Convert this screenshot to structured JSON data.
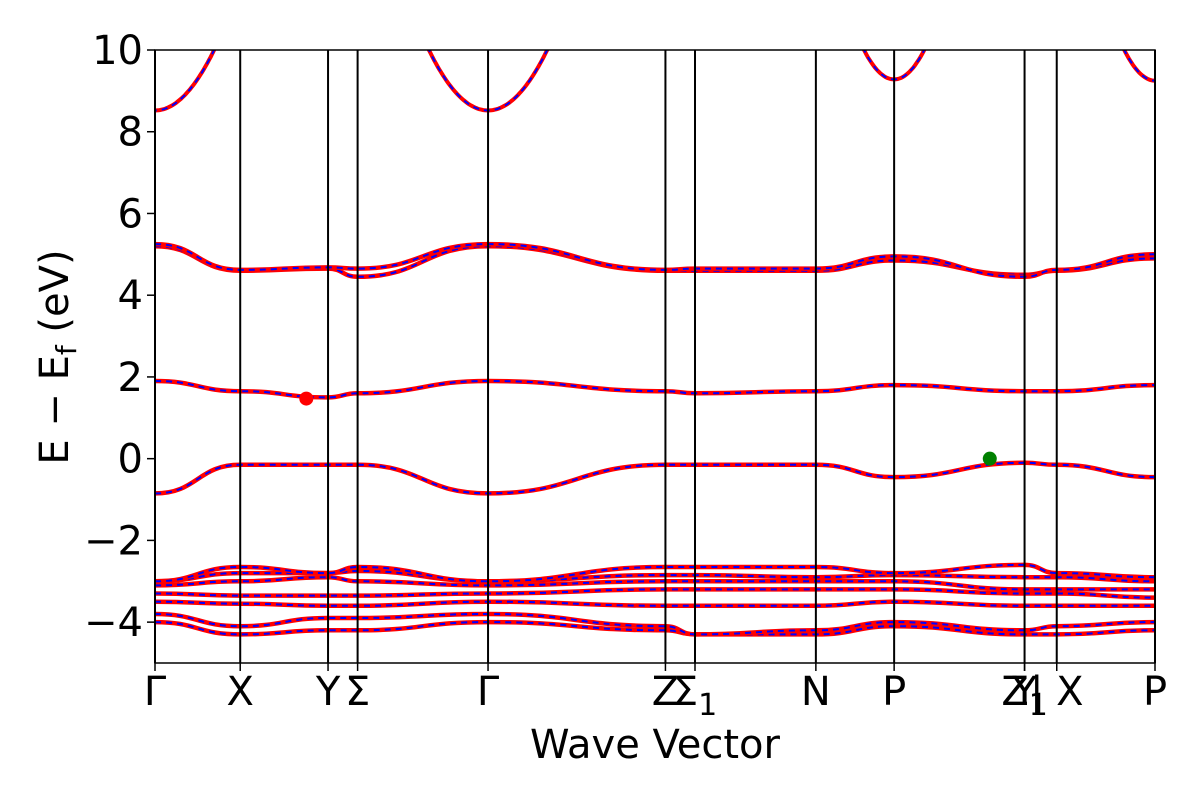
{
  "chart_data": {
    "type": "line",
    "title": "",
    "xlabel": "Wave Vector",
    "ylabel": "E − E_f (eV)",
    "ylabel_parts": {
      "main": "E − E",
      "sub": "f",
      "unit": " (eV)"
    },
    "ylim": [
      -5,
      10
    ],
    "xlim": [
      0,
      11.5
    ],
    "yticks": [
      -4,
      -2,
      0,
      2,
      4,
      6,
      8,
      10
    ],
    "ytick_labels": [
      "−4",
      "−2",
      "0",
      "2",
      "4",
      "6",
      "8",
      "10"
    ],
    "kpoint_positions": [
      0,
      0.98,
      1.99,
      2.33,
      3.83,
      5.87,
      6.21,
      7.6,
      8.5,
      10.0,
      10.37,
      11.5
    ],
    "kpoint_labels": [
      {
        "text": "Γ",
        "x": 0
      },
      {
        "text": "X",
        "x": 0.98
      },
      {
        "text": "Y",
        "x": 1.99
      },
      {
        "text": "Σ",
        "x": 2.33
      },
      {
        "text": "Γ",
        "x": 3.83
      },
      {
        "text": "Z",
        "x": 5.87
      },
      {
        "text": "Σ",
        "sub": "1",
        "x": 6.21
      },
      {
        "text": "N",
        "x": 7.6
      },
      {
        "text": "P",
        "x": 8.5
      },
      {
        "text": "Y",
        "x": 10.0
      },
      {
        "text": "Z",
        "sub": "1",
        "x": 10.0
      },
      {
        "text": "| X",
        "x": 10.37
      },
      {
        "text": "P",
        "x": 11.5
      }
    ],
    "grid": false,
    "series_styles": {
      "colors": [
        "#ff0000",
        "#0000ff"
      ],
      "line_styles": [
        "solid",
        "dashed"
      ]
    },
    "bands": [
      {
        "x": [
          0,
          0.98,
          1.99,
          2.33,
          3.83,
          5.87,
          6.21,
          7.6,
          8.5,
          10.0,
          10.37,
          11.5
        ],
        "y": [
          -4.0,
          -4.3,
          -4.2,
          -4.2,
          -4.0,
          -4.2,
          -4.3,
          -4.3,
          -4.1,
          -4.3,
          -4.3,
          -4.2
        ]
      },
      {
        "x": [
          0,
          0.98,
          1.99,
          2.33,
          3.83,
          5.87,
          6.21,
          7.6,
          8.5,
          10.0,
          10.37,
          11.5
        ],
        "y": [
          -3.8,
          -4.1,
          -3.9,
          -3.9,
          -3.8,
          -4.1,
          -4.3,
          -4.2,
          -4.0,
          -4.2,
          -4.1,
          -4.0
        ]
      },
      {
        "x": [
          0,
          0.98,
          1.99,
          2.33,
          3.83,
          5.87,
          6.21,
          7.6,
          8.5,
          10.0,
          10.37,
          11.5
        ],
        "y": [
          -3.5,
          -3.55,
          -3.6,
          -3.6,
          -3.5,
          -3.6,
          -3.6,
          -3.6,
          -3.5,
          -3.6,
          -3.6,
          -3.6
        ]
      },
      {
        "x": [
          0,
          0.98,
          1.99,
          2.33,
          3.83,
          5.87,
          6.21,
          7.6,
          8.5,
          10.0,
          10.37,
          11.5
        ],
        "y": [
          -3.3,
          -3.35,
          -3.35,
          -3.35,
          -3.3,
          -3.2,
          -3.2,
          -3.2,
          -3.2,
          -3.3,
          -3.3,
          -3.4
        ]
      },
      {
        "x": [
          0,
          0.98,
          1.99,
          2.33,
          3.83,
          5.87,
          6.21,
          7.6,
          8.5,
          10.0,
          10.37,
          11.5
        ],
        "y": [
          -3.1,
          -3.0,
          -2.9,
          -3.0,
          -3.1,
          -3.0,
          -3.0,
          -3.0,
          -3.0,
          -3.2,
          -3.2,
          -3.2
        ]
      },
      {
        "x": [
          0,
          0.98,
          1.99,
          2.33,
          3.83,
          5.87,
          6.21,
          7.6,
          8.5,
          10.0,
          10.37,
          11.5
        ],
        "y": [
          -3.0,
          -2.8,
          -2.8,
          -2.75,
          -3.0,
          -2.85,
          -2.85,
          -2.9,
          -2.85,
          -2.9,
          -2.9,
          -3.0
        ]
      },
      {
        "x": [
          0,
          0.98,
          1.99,
          2.33,
          3.83,
          5.87,
          6.21,
          7.6,
          8.5,
          10.0,
          10.37,
          11.5
        ],
        "y": [
          -3.0,
          -2.65,
          -2.8,
          -2.65,
          -3.0,
          -2.65,
          -2.65,
          -2.65,
          -2.8,
          -2.6,
          -2.8,
          -2.9
        ]
      },
      {
        "x": [
          0,
          0.98,
          1.99,
          2.33,
          3.83,
          5.87,
          6.21,
          7.6,
          8.5,
          10.0,
          10.37,
          11.5
        ],
        "y": [
          -0.85,
          -0.15,
          -0.15,
          -0.15,
          -0.85,
          -0.15,
          -0.15,
          -0.15,
          -0.45,
          -0.1,
          -0.15,
          -0.45
        ]
      },
      {
        "x": [
          0,
          0.98,
          1.99,
          2.33,
          3.83,
          5.87,
          6.21,
          7.6,
          8.5,
          10.0,
          10.37,
          11.5
        ],
        "y": [
          1.9,
          1.65,
          1.5,
          1.6,
          1.9,
          1.65,
          1.6,
          1.65,
          1.8,
          1.65,
          1.65,
          1.8
        ]
      },
      {
        "x": [
          0,
          0.98,
          1.99,
          2.33,
          3.83,
          5.87,
          6.21,
          7.6,
          8.5,
          10.0,
          10.37,
          11.5
        ],
        "y": [
          5.2,
          4.6,
          4.65,
          4.45,
          5.2,
          4.6,
          4.6,
          4.6,
          4.85,
          4.5,
          4.6,
          4.9
        ]
      },
      {
        "x": [
          0,
          0.98,
          1.99,
          2.33,
          3.83,
          5.87,
          6.21,
          7.6,
          8.5,
          10.0,
          10.37,
          11.5
        ],
        "y": [
          5.25,
          4.62,
          4.68,
          4.65,
          5.25,
          4.62,
          4.65,
          4.65,
          4.95,
          4.45,
          4.62,
          5.0
        ]
      }
    ],
    "markers": [
      {
        "name": "red-marker",
        "x": 1.74,
        "y": 1.47,
        "color": "#ff0000"
      },
      {
        "name": "green-marker",
        "x": 9.6,
        "y": 0.0,
        "color": "#008000"
      }
    ]
  }
}
